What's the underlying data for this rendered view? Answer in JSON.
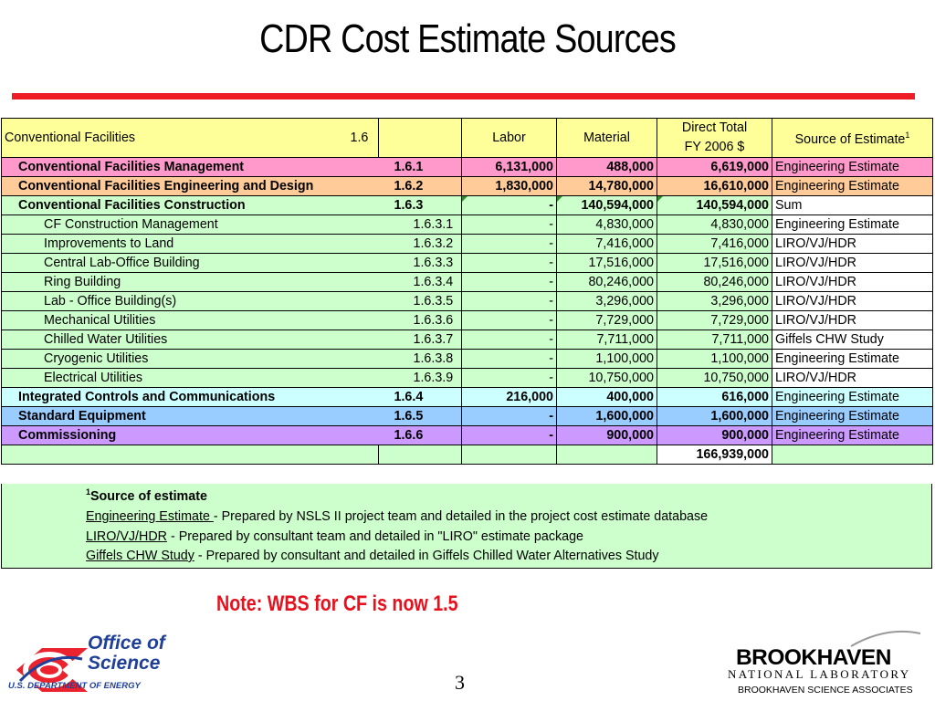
{
  "slide": {
    "title": "CDR Cost Estimate Sources",
    "note": "Note: WBS for CF is now 1.5",
    "page_number": "3"
  },
  "table": {
    "header": {
      "name": "Conventional Facilities",
      "wbs": "1.6",
      "labor": "Labor",
      "material": "Material",
      "direct_total_line1": "Direct Total",
      "direct_total_line2": "FY 2006 $",
      "source": "Source of Estimate",
      "source_sup": "1"
    },
    "rows": [
      {
        "desc": "Conventional Facilities Management",
        "wbs": "1.6.1",
        "labor": "6,131,000",
        "material": "488,000",
        "total": "6,619,000",
        "source": "Engineering Estimate",
        "level": 1,
        "color": "pink"
      },
      {
        "desc": "Conventional Facilities Engineering and Design",
        "wbs": "1.6.2",
        "labor": "1,830,000",
        "material": "14,780,000",
        "total": "16,610,000",
        "source": "Engineering Estimate",
        "level": 1,
        "color": "peach"
      },
      {
        "desc": "Conventional Facilities Construction",
        "wbs": "1.6.3",
        "labor": "-",
        "material": "140,594,000",
        "total": "140,594,000",
        "source": "Sum",
        "level": 1,
        "color": "lgreen"
      },
      {
        "desc": "CF Construction Management",
        "wbs": "1.6.3.1",
        "labor": "-",
        "material": "4,830,000",
        "total": "4,830,000",
        "source": "Engineering Estimate",
        "level": 2,
        "color": "lgreen"
      },
      {
        "desc": "Improvements to Land",
        "wbs": "1.6.3.2",
        "labor": "-",
        "material": "7,416,000",
        "total": "7,416,000",
        "source": "LIRO/VJ/HDR",
        "level": 2,
        "color": "lgreen"
      },
      {
        "desc": "Central Lab-Office  Building",
        "wbs": "1.6.3.3",
        "labor": "-",
        "material": "17,516,000",
        "total": "17,516,000",
        "source": "LIRO/VJ/HDR",
        "level": 2,
        "color": "lgreen"
      },
      {
        "desc": "Ring Building",
        "wbs": "1.6.3.4",
        "labor": "-",
        "material": "80,246,000",
        "total": "80,246,000",
        "source": "LIRO/VJ/HDR",
        "level": 2,
        "color": "lgreen"
      },
      {
        "desc": "Lab - Office Building(s)",
        "wbs": "1.6.3.5",
        "labor": "-",
        "material": "3,296,000",
        "total": "3,296,000",
        "source": "LIRO/VJ/HDR",
        "level": 2,
        "color": "lgreen"
      },
      {
        "desc": "Mechanical Utilities",
        "wbs": "1.6.3.6",
        "labor": "-",
        "material": "7,729,000",
        "total": "7,729,000",
        "source": "LIRO/VJ/HDR",
        "level": 2,
        "color": "lgreen"
      },
      {
        "desc": "Chilled Water Utilities",
        "wbs": "1.6.3.7",
        "labor": "-",
        "material": "7,711,000",
        "total": "7,711,000",
        "source": "Giffels CHW Study",
        "level": 2,
        "color": "lgreen"
      },
      {
        "desc": "Cryogenic Utilities",
        "wbs": "1.6.3.8",
        "labor": "-",
        "material": "1,100,000",
        "total": "1,100,000",
        "source": "Engineering Estimate",
        "level": 2,
        "color": "lgreen"
      },
      {
        "desc": "Electrical Utilities",
        "wbs": "1.6.3.9",
        "labor": "-",
        "material": "10,750,000",
        "total": "10,750,000",
        "source": "LIRO/VJ/HDR",
        "level": 2,
        "color": "lgreen"
      },
      {
        "desc": "Integrated Controls and Communications",
        "wbs": "1.6.4",
        "labor": "216,000",
        "material": "400,000",
        "total": "616,000",
        "source": "Engineering Estimate",
        "level": 1,
        "color": "lblue"
      },
      {
        "desc": "Standard Equipment",
        "wbs": "1.6.5",
        "labor": "-",
        "material": "1,600,000",
        "total": "1,600,000",
        "source": "Engineering Estimate",
        "level": 1,
        "color": "blue"
      },
      {
        "desc": "Commissioning",
        "wbs": "1.6.6",
        "labor": "-",
        "material": "900,000",
        "total": "900,000",
        "source": "Engineering Estimate",
        "level": 1,
        "color": "violet"
      }
    ],
    "grand_total": "166,939,000"
  },
  "footnote": {
    "sup": "1",
    "title": "Source of estimate",
    "items": [
      {
        "term": "Engineering Estimate ",
        "text": "- Prepared by NSLS II project team and detailed in the project cost estimate database"
      },
      {
        "term": "LIRO/VJ/HDR",
        "text": " - Prepared by consultant team and detailed in \"LIRO\" estimate package"
      },
      {
        "term": "Giffels CHW Study",
        "text": " - Prepared by consultant and detailed in Giffels Chilled Water Alternatives Study"
      }
    ]
  },
  "logos": {
    "doe_line1": "Office of",
    "doe_line2": "Science",
    "doe_sub": "U.S. DEPARTMENT OF ENERGY",
    "bnl_name": "BROOKHAVEN",
    "bnl_sub": "NATIONAL LABORATORY",
    "bnl_assoc": "BROOKHAVEN SCIENCE ASSOCIATES"
  },
  "colors": {
    "title_bar": "#ee1c25",
    "note": "#e8101c",
    "header": "#ffff99",
    "pink": "#ff99cc",
    "peach": "#ffcc99",
    "lgreen": "#ccffcc",
    "lblue": "#ccffff",
    "blue": "#99ccff",
    "violet": "#cc99ff",
    "doe_blue": "#1f3f98"
  }
}
